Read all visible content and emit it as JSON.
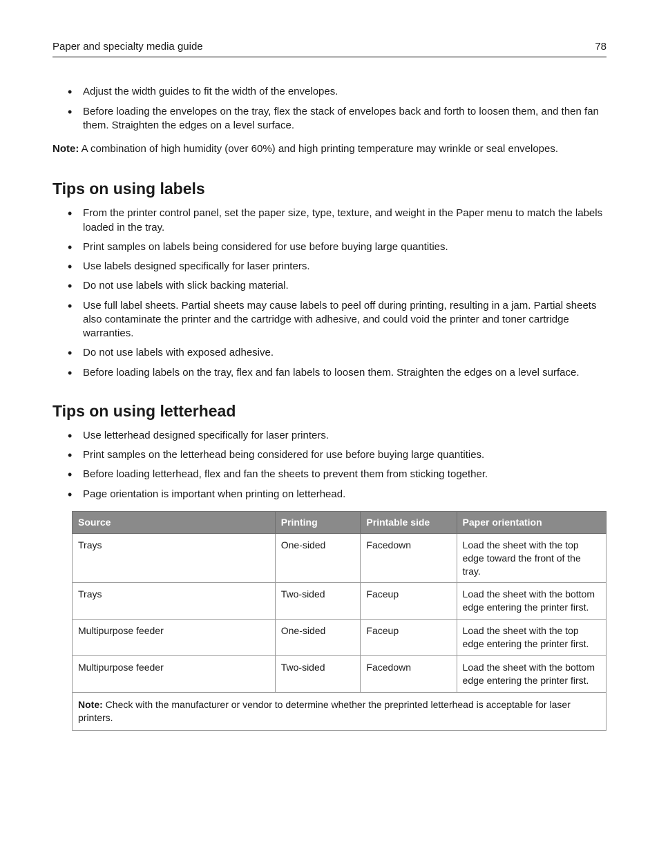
{
  "header": {
    "title": "Paper and specialty media guide",
    "page_number": "78"
  },
  "intro_bullets": [
    "Adjust the width guides to fit the width of the envelopes.",
    "Before loading the envelopes on the tray, flex the stack of envelopes back and forth to loosen them, and then fan them. Straighten the edges on a level surface."
  ],
  "intro_note": {
    "label": "Note:",
    "text": " A combination of high humidity (over 60%) and high printing temperature may wrinkle or seal envelopes."
  },
  "labels_section": {
    "heading": "Tips on using labels",
    "bullets": [
      "From the printer control panel, set the paper size, type, texture, and weight in the Paper menu to match the labels loaded in the tray.",
      "Print samples on labels being considered for use before buying large quantities.",
      "Use labels designed specifically for laser printers.",
      "Do not use labels with slick backing material.",
      "Use full label sheets. Partial sheets may cause labels to peel off during printing, resulting in a jam. Partial sheets also contaminate the printer and the cartridge with adhesive, and could void the printer and toner cartridge warranties.",
      "Do not use labels with exposed adhesive.",
      "Before loading labels on the tray, flex and fan labels to loosen them. Straighten the edges on a level surface."
    ]
  },
  "letterhead_section": {
    "heading": "Tips on using letterhead",
    "bullets": [
      "Use letterhead designed specifically for laser printers.",
      "Print samples on the letterhead being considered for use before buying large quantities.",
      "Before loading letterhead, flex and fan the sheets to prevent them from sticking together.",
      "Page orientation is important when printing on letterhead."
    ]
  },
  "table": {
    "columns": [
      "Source",
      "Printing",
      "Printable side",
      "Paper orientation"
    ],
    "rows": [
      [
        "Trays",
        "One-sided",
        "Facedown",
        "Load the sheet with the top edge toward the front of the tray."
      ],
      [
        "Trays",
        "Two-sided",
        "Faceup",
        "Load the sheet with the bottom edge entering the printer first."
      ],
      [
        "Multipurpose feeder",
        "One-sided",
        "Faceup",
        "Load the sheet with the top edge entering the printer first."
      ],
      [
        "Multipurpose feeder",
        "Two-sided",
        "Facedown",
        "Load the sheet with the bottom edge entering the printer first."
      ]
    ],
    "note": {
      "label": "Note:",
      "text": " Check with the manufacturer or vendor to determine whether the preprinted letterhead is acceptable for laser printers."
    }
  }
}
